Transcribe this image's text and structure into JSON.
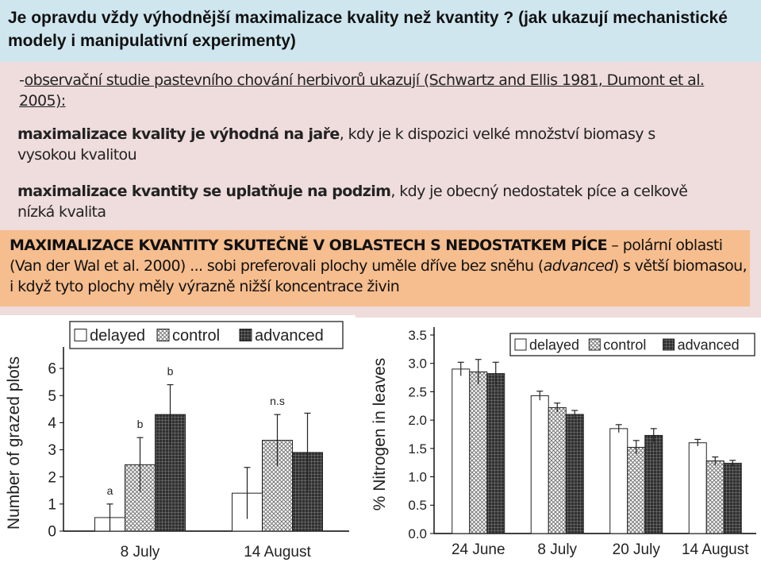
{
  "slide": {
    "title": "Je opravdu vždy výhodnější maximalizace kvality než kvantity ? (jak ukazují mechanistické modely i manipulativní experimenty)",
    "line1_prefix": "-",
    "line1_underlined": "observační studie pastevního chování herbivorů ukazují (Schwartz and Ellis 1981, Dumont et al. 2005):",
    "p2_bold": "maximalizace kvality je výhodná na jaře",
    "p2_rest": ", kdy je k dispozici velké množství biomasy s vysokou kvalitou",
    "p3_bold": "maximalizace kvantity se uplatňuje na podzim",
    "p3_rest": ", kdy je obecný nedostatek píce a celkově nízká kvalita",
    "box_bold": "MAXIMALIZACE KVANTITY SKUTEČNĚ V OBLASTECH S NEDOSTATKEM PÍCE",
    "box_rest1": " – polární oblasti (Van der Wal et al. 2000) ... sobi preferovali plochy uměle dříve bez sněhu (",
    "box_italic": "advanced",
    "box_rest2": ") s větší biomasou, i když tyto plochy měly výrazně nižší koncentrace živin"
  },
  "chart_data": [
    {
      "type": "bar",
      "ylabel": "Number of grazed plots",
      "xlabel": "",
      "ylim": [
        0,
        6.5
      ],
      "yticks": [
        0,
        1,
        2,
        3,
        4,
        5,
        6
      ],
      "categories": [
        "8 July",
        "14 August"
      ],
      "legend_position": "top",
      "series": [
        {
          "name": "delayed",
          "values": [
            0.5,
            1.4
          ],
          "errors": [
            0.5,
            0.95
          ],
          "fill": "white"
        },
        {
          "name": "control",
          "values": [
            2.45,
            3.35
          ],
          "errors": [
            1.0,
            0.95
          ],
          "fill": "crosshatch"
        },
        {
          "name": "advanced",
          "values": [
            4.3,
            2.9
          ],
          "errors": [
            1.1,
            1.45
          ],
          "fill": "dark-grid"
        }
      ],
      "annotations": [
        {
          "category": "8 July",
          "series": "delayed",
          "text": "a"
        },
        {
          "category": "8 July",
          "series": "control",
          "text": "b"
        },
        {
          "category": "8 July",
          "series": "advanced",
          "text": "b"
        },
        {
          "category": "14 August",
          "series": "control",
          "text": "n.s"
        }
      ]
    },
    {
      "type": "bar",
      "ylabel": "% Nitrogen in leaves",
      "xlabel": "",
      "ylim": [
        0,
        3.5
      ],
      "yticks": [
        "0.0",
        "0.5",
        "1.0",
        "1.5",
        "2.0",
        "2.5",
        "3.0",
        "3.5"
      ],
      "categories": [
        "24 June",
        "8 July",
        "20 July",
        "14 August"
      ],
      "legend_position": "top-right",
      "series": [
        {
          "name": "delayed",
          "values": [
            2.9,
            2.43,
            1.85,
            1.6
          ],
          "errors": [
            0.12,
            0.08,
            0.07,
            0.06
          ],
          "fill": "white"
        },
        {
          "name": "control",
          "values": [
            2.85,
            2.22,
            1.52,
            1.28
          ],
          "errors": [
            0.22,
            0.08,
            0.12,
            0.07
          ],
          "fill": "crosshatch"
        },
        {
          "name": "advanced",
          "values": [
            2.82,
            2.1,
            1.73,
            1.24
          ],
          "errors": [
            0.2,
            0.07,
            0.12,
            0.05
          ],
          "fill": "dark-grid"
        }
      ]
    }
  ]
}
